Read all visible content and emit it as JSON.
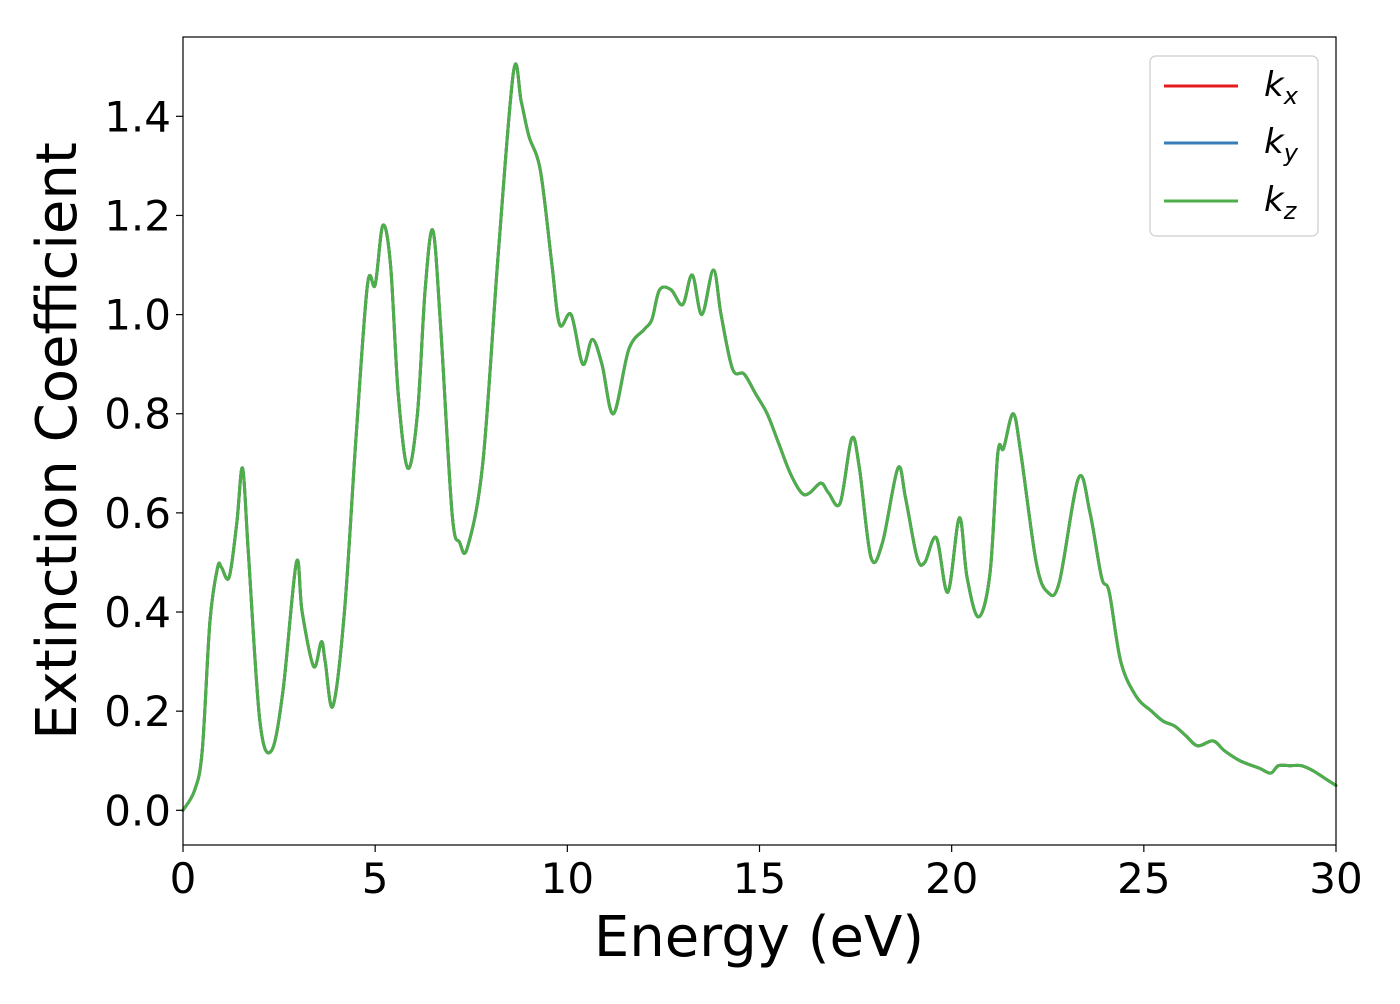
{
  "chart_data": {
    "type": "line",
    "title": "",
    "xlabel": "Energy (eV)",
    "ylabel": "Extinction Coefficient",
    "xlim": [
      0,
      30
    ],
    "ylim": [
      -0.07,
      1.56
    ],
    "xticks": [
      0,
      5,
      10,
      15,
      20,
      25,
      30
    ],
    "xtick_labels": [
      "0",
      "5",
      "10",
      "15",
      "20",
      "25",
      "30"
    ],
    "yticks": [
      0.0,
      0.2,
      0.4,
      0.6,
      0.8,
      1.0,
      1.2,
      1.4
    ],
    "ytick_labels": [
      "0.0",
      "0.2",
      "0.4",
      "0.6",
      "0.8",
      "1.0",
      "1.2",
      "1.4"
    ],
    "grid": false,
    "legend_position": "top-right",
    "x": [
      0,
      0.3,
      0.5,
      0.7,
      0.9,
      1.0,
      1.2,
      1.4,
      1.55,
      1.7,
      2.0,
      2.3,
      2.6,
      2.95,
      3.1,
      3.4,
      3.6,
      3.7,
      3.9,
      4.2,
      4.5,
      4.8,
      5.0,
      5.2,
      5.4,
      5.6,
      5.85,
      6.1,
      6.3,
      6.5,
      6.7,
      7.0,
      7.2,
      7.4,
      7.8,
      8.2,
      8.6,
      8.8,
      9.0,
      9.3,
      9.6,
      9.8,
      10.1,
      10.4,
      10.65,
      10.9,
      11.2,
      11.6,
      12.0,
      12.2,
      12.4,
      12.7,
      13.0,
      13.25,
      13.5,
      13.8,
      14.0,
      14.3,
      14.6,
      14.9,
      15.2,
      15.5,
      15.8,
      16.1,
      16.3,
      16.6,
      16.8,
      17.1,
      17.4,
      17.6,
      17.9,
      18.2,
      18.6,
      18.8,
      19.1,
      19.3,
      19.6,
      19.9,
      20.2,
      20.4,
      20.7,
      21.0,
      21.2,
      21.35,
      21.6,
      21.8,
      22.2,
      22.5,
      22.8,
      23.3,
      23.6,
      23.9,
      24.1,
      24.4,
      24.8,
      25.2,
      25.5,
      25.8,
      26.1,
      26.4,
      26.8,
      27.1,
      27.5,
      28.0,
      28.3,
      28.5,
      28.8,
      29.1,
      29.4,
      29.7,
      30.0
    ],
    "series": [
      {
        "name": "kx",
        "color": "#e41a1c",
        "values": [
          0.0,
          0.04,
          0.12,
          0.38,
          0.49,
          0.49,
          0.47,
          0.58,
          0.69,
          0.52,
          0.18,
          0.12,
          0.24,
          0.5,
          0.4,
          0.29,
          0.34,
          0.3,
          0.21,
          0.4,
          0.75,
          1.06,
          1.06,
          1.18,
          1.1,
          0.84,
          0.69,
          0.8,
          1.05,
          1.17,
          0.98,
          0.6,
          0.54,
          0.53,
          0.7,
          1.12,
          1.49,
          1.43,
          1.36,
          1.29,
          1.1,
          0.98,
          1.0,
          0.9,
          0.95,
          0.9,
          0.8,
          0.93,
          0.97,
          0.99,
          1.05,
          1.05,
          1.02,
          1.08,
          1.0,
          1.09,
          1.0,
          0.89,
          0.88,
          0.84,
          0.8,
          0.74,
          0.68,
          0.64,
          0.64,
          0.66,
          0.64,
          0.62,
          0.75,
          0.69,
          0.51,
          0.54,
          0.69,
          0.63,
          0.51,
          0.5,
          0.55,
          0.44,
          0.59,
          0.47,
          0.39,
          0.48,
          0.72,
          0.73,
          0.8,
          0.72,
          0.5,
          0.44,
          0.46,
          0.67,
          0.6,
          0.47,
          0.44,
          0.3,
          0.23,
          0.2,
          0.18,
          0.17,
          0.15,
          0.13,
          0.14,
          0.12,
          0.1,
          0.085,
          0.075,
          0.09,
          0.09,
          0.09,
          0.08,
          0.065,
          0.05
        ]
      },
      {
        "name": "ky",
        "color": "#377eb8",
        "values": [
          0.0,
          0.04,
          0.12,
          0.38,
          0.49,
          0.49,
          0.47,
          0.58,
          0.69,
          0.52,
          0.18,
          0.12,
          0.24,
          0.5,
          0.4,
          0.29,
          0.34,
          0.3,
          0.21,
          0.4,
          0.75,
          1.06,
          1.06,
          1.18,
          1.1,
          0.84,
          0.69,
          0.8,
          1.05,
          1.17,
          0.98,
          0.6,
          0.54,
          0.53,
          0.7,
          1.12,
          1.49,
          1.43,
          1.36,
          1.29,
          1.1,
          0.98,
          1.0,
          0.9,
          0.95,
          0.9,
          0.8,
          0.93,
          0.97,
          0.99,
          1.05,
          1.05,
          1.02,
          1.08,
          1.0,
          1.09,
          1.0,
          0.89,
          0.88,
          0.84,
          0.8,
          0.74,
          0.68,
          0.64,
          0.64,
          0.66,
          0.64,
          0.62,
          0.75,
          0.69,
          0.51,
          0.54,
          0.69,
          0.63,
          0.51,
          0.5,
          0.55,
          0.44,
          0.59,
          0.47,
          0.39,
          0.48,
          0.72,
          0.73,
          0.8,
          0.72,
          0.5,
          0.44,
          0.46,
          0.67,
          0.6,
          0.47,
          0.44,
          0.3,
          0.23,
          0.2,
          0.18,
          0.17,
          0.15,
          0.13,
          0.14,
          0.12,
          0.1,
          0.085,
          0.075,
          0.09,
          0.09,
          0.09,
          0.08,
          0.065,
          0.05
        ]
      },
      {
        "name": "kz",
        "color": "#4daf4a",
        "values": [
          0.0,
          0.04,
          0.12,
          0.38,
          0.49,
          0.49,
          0.47,
          0.58,
          0.69,
          0.52,
          0.18,
          0.12,
          0.24,
          0.5,
          0.4,
          0.29,
          0.34,
          0.3,
          0.21,
          0.4,
          0.75,
          1.06,
          1.06,
          1.18,
          1.1,
          0.84,
          0.69,
          0.8,
          1.05,
          1.17,
          0.98,
          0.6,
          0.54,
          0.53,
          0.7,
          1.12,
          1.49,
          1.43,
          1.36,
          1.29,
          1.1,
          0.98,
          1.0,
          0.9,
          0.95,
          0.9,
          0.8,
          0.93,
          0.97,
          0.99,
          1.05,
          1.05,
          1.02,
          1.08,
          1.0,
          1.09,
          1.0,
          0.89,
          0.88,
          0.84,
          0.8,
          0.74,
          0.68,
          0.64,
          0.64,
          0.66,
          0.64,
          0.62,
          0.75,
          0.69,
          0.51,
          0.54,
          0.69,
          0.63,
          0.51,
          0.5,
          0.55,
          0.44,
          0.59,
          0.47,
          0.39,
          0.48,
          0.72,
          0.73,
          0.8,
          0.72,
          0.5,
          0.44,
          0.46,
          0.67,
          0.6,
          0.47,
          0.44,
          0.3,
          0.23,
          0.2,
          0.18,
          0.17,
          0.15,
          0.13,
          0.14,
          0.12,
          0.1,
          0.085,
          0.075,
          0.09,
          0.09,
          0.09,
          0.08,
          0.065,
          0.05
        ]
      }
    ],
    "legend": [
      {
        "base": "k",
        "sub": "x",
        "color": "#e41a1c"
      },
      {
        "base": "k",
        "sub": "y",
        "color": "#377eb8"
      },
      {
        "base": "k",
        "sub": "z",
        "color": "#4daf4a"
      }
    ]
  }
}
